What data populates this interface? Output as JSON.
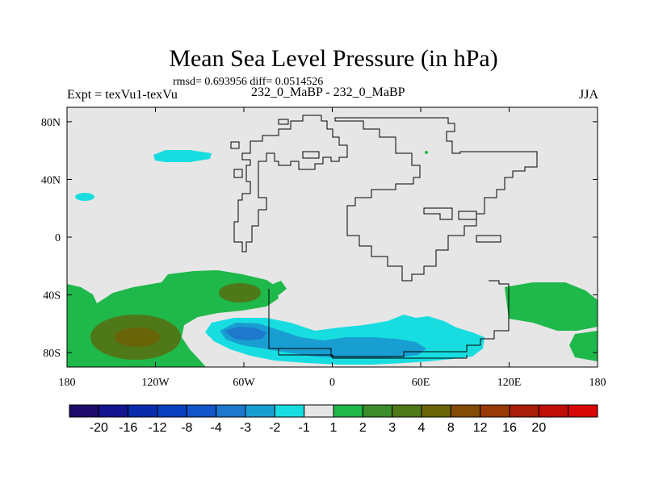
{
  "header": {
    "title": "Mean Sea Level Pressure (in hPa)",
    "stats": "rmsd= 0.693956 diff= 0.0514526",
    "left_label": "Expt = texVu1-texVu",
    "center_label": "232_0_MaBP - 232_0_MaBP",
    "right_label": "JJA"
  },
  "chart_data": {
    "type": "heatmap",
    "title": "Mean Sea Level Pressure (in hPa)",
    "subtitle": "rmsd= 0.693956 diff= 0.0514526",
    "xlabel": "",
    "ylabel": "",
    "xlim": [
      -180,
      180
    ],
    "ylim": [
      -90,
      90
    ],
    "x_ticks": [
      {
        "value": -180,
        "label": "180"
      },
      {
        "value": -120,
        "label": "120W"
      },
      {
        "value": -60,
        "label": "60W"
      },
      {
        "value": 0,
        "label": "0"
      },
      {
        "value": 60,
        "label": "60E"
      },
      {
        "value": 120,
        "label": "120E"
      },
      {
        "value": 180,
        "label": "180"
      }
    ],
    "y_ticks": [
      {
        "value": 80,
        "label": "80N"
      },
      {
        "value": 40,
        "label": "40N"
      },
      {
        "value": 0,
        "label": "0"
      },
      {
        "value": -40,
        "label": "40S"
      },
      {
        "value": -80,
        "label": "80S"
      }
    ],
    "colorbar": {
      "bins": [
        {
          "color": "#1d0b6b"
        },
        {
          "color": "#14148f"
        },
        {
          "color": "#0a2cac"
        },
        {
          "color": "#0a3fc0"
        },
        {
          "color": "#1255c8"
        },
        {
          "color": "#1e78cc"
        },
        {
          "color": "#199ed2"
        },
        {
          "color": "#18dde0"
        },
        {
          "color": "#e6e6e6"
        },
        {
          "color": "#1fb84a"
        },
        {
          "color": "#3c8c2a"
        },
        {
          "color": "#4f7818"
        },
        {
          "color": "#6a6408"
        },
        {
          "color": "#844a08"
        },
        {
          "color": "#983a08"
        },
        {
          "color": "#a81e08"
        },
        {
          "color": "#c00e08"
        },
        {
          "color": "#d80808"
        }
      ],
      "labels": [
        "-20",
        "-16",
        "-12",
        "-8",
        "-4",
        "-3",
        "-2",
        "-1",
        "1",
        "2",
        "3",
        "4",
        "8",
        "12",
        "16",
        "20"
      ]
    },
    "fields": [
      {
        "name": "southern-anomaly-green",
        "level": "1 to 2",
        "color": "#1fb84a"
      },
      {
        "name": "southern-anomaly-brown",
        "level": "3 to 4",
        "color": "#4f7818"
      },
      {
        "name": "north-pacific-low",
        "level": "-2 to -1",
        "color": "#18dde0"
      },
      {
        "name": "antarctic-low-cyan",
        "level": "-2 to -1",
        "color": "#18dde0"
      },
      {
        "name": "antarctic-low-blue",
        "level": "-3 to -2",
        "color": "#199ed2"
      }
    ]
  }
}
